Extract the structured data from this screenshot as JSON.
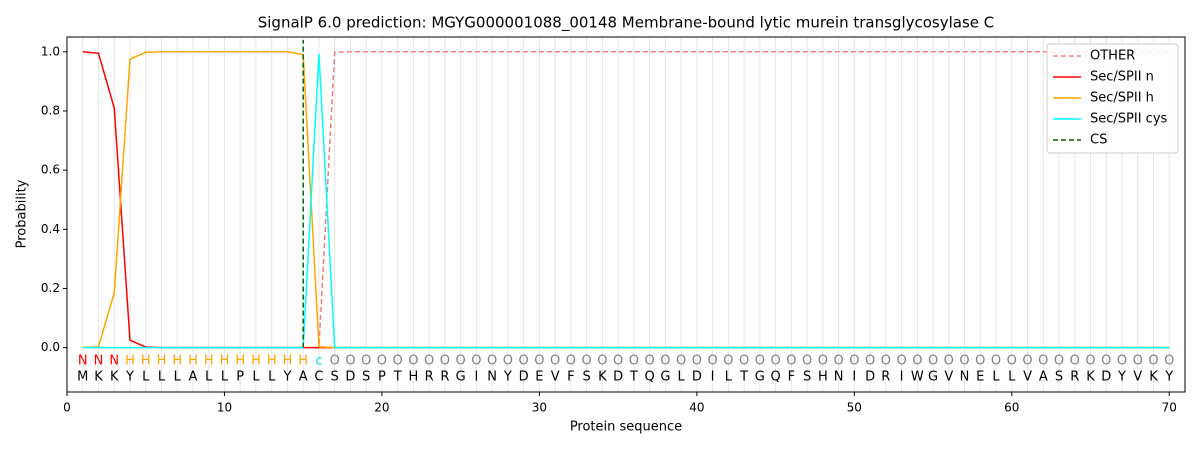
{
  "chart_data": {
    "type": "line",
    "title": "SignalP 6.0 prediction: MGYG000001088_00148 Membrane-bound lytic murein transglycosylase C",
    "x_label": "Protein sequence",
    "y_label": "Probability",
    "x": [
      1,
      2,
      3,
      4,
      5,
      6,
      7,
      8,
      9,
      10,
      11,
      12,
      13,
      14,
      15,
      16,
      17,
      18,
      19,
      20,
      21,
      22,
      23,
      24,
      25,
      26,
      27,
      28,
      29,
      30,
      31,
      32,
      33,
      34,
      35,
      36,
      37,
      38,
      39,
      40,
      41,
      42,
      43,
      44,
      45,
      46,
      47,
      48,
      49,
      50,
      51,
      52,
      53,
      54,
      55,
      56,
      57,
      58,
      59,
      60,
      61,
      62,
      63,
      64,
      65,
      66,
      67,
      68,
      69,
      70
    ],
    "sequence": [
      "M",
      "K",
      "K",
      "Y",
      "L",
      "L",
      "L",
      "A",
      "L",
      "L",
      "P",
      "L",
      "L",
      "Y",
      "A",
      "C",
      "S",
      "D",
      "S",
      "P",
      "T",
      "H",
      "R",
      "R",
      "G",
      "I",
      "N",
      "Y",
      "D",
      "E",
      "V",
      "F",
      "S",
      "K",
      "D",
      "T",
      "Q",
      "G",
      "L",
      "D",
      "I",
      "L",
      "T",
      "G",
      "Q",
      "F",
      "S",
      "H",
      "N",
      "I",
      "D",
      "R",
      "I",
      "W",
      "G",
      "V",
      "N",
      "E",
      "L",
      "L",
      "V",
      "A",
      "S",
      "R",
      "K",
      "D",
      "Y",
      "V",
      "K",
      "Y"
    ],
    "region_labels": [
      "N",
      "N",
      "N",
      "H",
      "H",
      "H",
      "H",
      "H",
      "H",
      "H",
      "H",
      "H",
      "H",
      "H",
      "H",
      "c",
      "O",
      "O",
      "O",
      "O",
      "O",
      "O",
      "O",
      "O",
      "O",
      "O",
      "O",
      "O",
      "O",
      "O",
      "O",
      "O",
      "O",
      "O",
      "O",
      "O",
      "O",
      "O",
      "O",
      "O",
      "O",
      "O",
      "O",
      "O",
      "O",
      "O",
      "O",
      "O",
      "O",
      "O",
      "O",
      "O",
      "O",
      "O",
      "O",
      "O",
      "O",
      "O",
      "O",
      "O",
      "O",
      "O",
      "O",
      "O",
      "O",
      "O",
      "O",
      "O",
      "O",
      "O"
    ],
    "region_colors": {
      "N": "#ff0000",
      "H": "#ffa500",
      "c": "#00e5e5",
      "O": "#808080"
    },
    "series": [
      {
        "name": "OTHER",
        "color": "#f08080",
        "dashed": true,
        "values": [
          0,
          0,
          0,
          0,
          0,
          0,
          0,
          0,
          0,
          0,
          0,
          0,
          0,
          0,
          0,
          0,
          0.998,
          1,
          1,
          1,
          1,
          1,
          1,
          1,
          1,
          1,
          1,
          1,
          1,
          1,
          1,
          1,
          1,
          1,
          1,
          1,
          1,
          1,
          1,
          1,
          1,
          1,
          1,
          1,
          1,
          1,
          1,
          1,
          1,
          1,
          1,
          1,
          1,
          1,
          1,
          1,
          1,
          1,
          1,
          1,
          1,
          1,
          1,
          1,
          1,
          1,
          1,
          1,
          1,
          1
        ]
      },
      {
        "name": "Sec/SPII n",
        "color": "#ff0000",
        "values": [
          1,
          0.995,
          0.81,
          0.025,
          0.002,
          0,
          0,
          0,
          0,
          0,
          0,
          0,
          0,
          0,
          0,
          0,
          0,
          0,
          0,
          0,
          0,
          0,
          0,
          0,
          0,
          0,
          0,
          0,
          0,
          0,
          0,
          0,
          0,
          0,
          0,
          0,
          0,
          0,
          0,
          0,
          0,
          0,
          0,
          0,
          0,
          0,
          0,
          0,
          0,
          0,
          0,
          0,
          0,
          0,
          0,
          0,
          0,
          0,
          0,
          0,
          0,
          0,
          0,
          0,
          0,
          0,
          0,
          0,
          0,
          0
        ]
      },
      {
        "name": "Sec/SPII h",
        "color": "#ffa500",
        "values": [
          0,
          0.003,
          0.185,
          0.975,
          0.998,
          1,
          1,
          1,
          1,
          1,
          1,
          1,
          1,
          1,
          0.99,
          0.003,
          0,
          0,
          0,
          0,
          0,
          0,
          0,
          0,
          0,
          0,
          0,
          0,
          0,
          0,
          0,
          0,
          0,
          0,
          0,
          0,
          0,
          0,
          0,
          0,
          0,
          0,
          0,
          0,
          0,
          0,
          0,
          0,
          0,
          0,
          0,
          0,
          0,
          0,
          0,
          0,
          0,
          0,
          0,
          0,
          0,
          0,
          0,
          0,
          0,
          0,
          0,
          0,
          0,
          0
        ]
      },
      {
        "name": "Sec/SPII cys",
        "color": "#00ffff",
        "values": [
          0,
          0,
          0,
          0,
          0,
          0,
          0,
          0,
          0,
          0,
          0,
          0,
          0,
          0,
          0,
          0.993,
          0,
          0,
          0,
          0,
          0,
          0,
          0,
          0,
          0,
          0,
          0,
          0,
          0,
          0,
          0,
          0,
          0,
          0,
          0,
          0,
          0,
          0,
          0,
          0,
          0,
          0,
          0,
          0,
          0,
          0,
          0,
          0,
          0,
          0,
          0,
          0,
          0,
          0,
          0,
          0,
          0,
          0,
          0,
          0,
          0,
          0,
          0,
          0,
          0,
          0,
          0,
          0,
          0,
          0
        ]
      }
    ],
    "cs_marker": {
      "name": "CS",
      "color": "#006400",
      "x": 15
    },
    "xlim": [
      0,
      71
    ],
    "ylim": [
      -0.15,
      1.05
    ],
    "xticks": [
      0,
      10,
      20,
      30,
      40,
      50,
      60,
      70
    ],
    "yticks": [
      {
        "value": 0,
        "label": "0.0"
      },
      {
        "value": 0.2,
        "label": "0.2"
      },
      {
        "value": 0.4,
        "label": "0.4"
      },
      {
        "value": 0.6,
        "label": "0.6"
      },
      {
        "value": 0.8,
        "label": "0.8"
      },
      {
        "value": 1,
        "label": "1.0"
      }
    ],
    "legend": "upper right"
  }
}
